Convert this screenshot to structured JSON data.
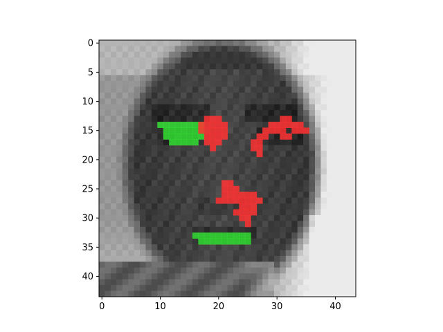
{
  "chart_data": {
    "type": "heatmap",
    "title": "",
    "xlabel": "",
    "ylabel": "",
    "grid": false,
    "x_range": [
      -0.5,
      43.5
    ],
    "y_range": [
      43.5,
      -0.5
    ],
    "x_ticks": [
      0,
      10,
      20,
      30,
      40
    ],
    "y_ticks": [
      0,
      5,
      10,
      15,
      20,
      25,
      30,
      35,
      40
    ],
    "x_tick_labels": [
      "0",
      "10",
      "20",
      "30",
      "40"
    ],
    "y_tick_labels": [
      "0",
      "5",
      "10",
      "15",
      "20",
      "25",
      "30",
      "35",
      "40"
    ],
    "grid_size": [
      44,
      44
    ],
    "background_image": "grayscale face (dark skin tone, lighter background at right)",
    "overlays": [
      {
        "color": "#33dd33",
        "meaning": "positive attribution",
        "cells": [
          [
            10,
            14
          ],
          [
            11,
            14
          ],
          [
            12,
            14
          ],
          [
            13,
            14
          ],
          [
            14,
            14
          ],
          [
            15,
            14
          ],
          [
            16,
            14
          ],
          [
            17,
            14
          ],
          [
            11,
            15
          ],
          [
            12,
            15
          ],
          [
            13,
            15
          ],
          [
            14,
            15
          ],
          [
            15,
            15
          ],
          [
            16,
            15
          ],
          [
            17,
            15
          ],
          [
            11,
            16
          ],
          [
            12,
            16
          ],
          [
            13,
            16
          ],
          [
            14,
            16
          ],
          [
            15,
            16
          ],
          [
            16,
            16
          ],
          [
            17,
            16
          ],
          [
            12,
            17
          ],
          [
            13,
            17
          ],
          [
            14,
            17
          ],
          [
            15,
            17
          ],
          [
            16,
            17
          ],
          [
            16,
            33
          ],
          [
            17,
            33
          ],
          [
            18,
            33
          ],
          [
            19,
            33
          ],
          [
            20,
            33
          ],
          [
            21,
            33
          ],
          [
            22,
            33
          ],
          [
            23,
            33
          ],
          [
            24,
            33
          ],
          [
            25,
            33
          ],
          [
            17,
            34
          ],
          [
            18,
            34
          ],
          [
            19,
            34
          ],
          [
            20,
            34
          ],
          [
            21,
            34
          ],
          [
            22,
            34
          ],
          [
            23,
            34
          ],
          [
            24,
            34
          ],
          [
            25,
            34
          ]
        ]
      },
      {
        "color": "#ff3333",
        "meaning": "negative attribution",
        "cells": [
          [
            18,
            13
          ],
          [
            19,
            13
          ],
          [
            20,
            13
          ],
          [
            17,
            14
          ],
          [
            18,
            14
          ],
          [
            19,
            14
          ],
          [
            20,
            14
          ],
          [
            21,
            14
          ],
          [
            17,
            15
          ],
          [
            18,
            15
          ],
          [
            19,
            15
          ],
          [
            20,
            15
          ],
          [
            21,
            15
          ],
          [
            18,
            16
          ],
          [
            19,
            16
          ],
          [
            20,
            16
          ],
          [
            21,
            16
          ],
          [
            18,
            17
          ],
          [
            19,
            17
          ],
          [
            20,
            17
          ],
          [
            19,
            18
          ],
          [
            31,
            13
          ],
          [
            32,
            13
          ],
          [
            29,
            14
          ],
          [
            30,
            14
          ],
          [
            31,
            14
          ],
          [
            32,
            14
          ],
          [
            33,
            14
          ],
          [
            34,
            14
          ],
          [
            28,
            15
          ],
          [
            29,
            15
          ],
          [
            30,
            15
          ],
          [
            31,
            15
          ],
          [
            33,
            15
          ],
          [
            34,
            15
          ],
          [
            35,
            15
          ],
          [
            27,
            16
          ],
          [
            28,
            16
          ],
          [
            31,
            16
          ],
          [
            32,
            16
          ],
          [
            26,
            17
          ],
          [
            27,
            17
          ],
          [
            26,
            18
          ],
          [
            27,
            18
          ],
          [
            27,
            19
          ],
          [
            21,
            24
          ],
          [
            22,
            24
          ],
          [
            21,
            25
          ],
          [
            22,
            25
          ],
          [
            23,
            25
          ],
          [
            21,
            26
          ],
          [
            22,
            26
          ],
          [
            23,
            26
          ],
          [
            24,
            26
          ],
          [
            25,
            26
          ],
          [
            26,
            26
          ],
          [
            20,
            27
          ],
          [
            21,
            27
          ],
          [
            22,
            27
          ],
          [
            23,
            27
          ],
          [
            24,
            27
          ],
          [
            25,
            27
          ],
          [
            26,
            27
          ],
          [
            27,
            27
          ],
          [
            24,
            28
          ],
          [
            25,
            28
          ],
          [
            26,
            28
          ],
          [
            23,
            29
          ],
          [
            24,
            29
          ],
          [
            25,
            29
          ],
          [
            26,
            29
          ],
          [
            24,
            30
          ],
          [
            25,
            30
          ],
          [
            25,
            31
          ]
        ]
      }
    ]
  }
}
